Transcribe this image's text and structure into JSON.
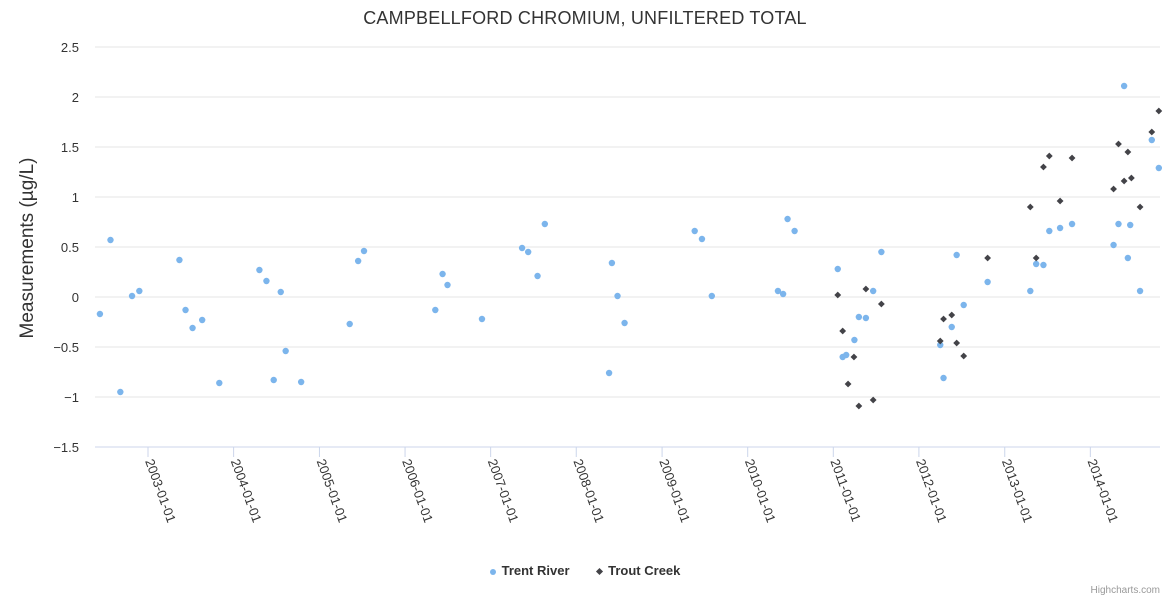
{
  "chart_data": {
    "type": "scatter",
    "title": "CAMPBELLFORD CHROMIUM, UNFILTERED TOTAL",
    "xlabel": "",
    "ylabel": "Measurements (µg/L)",
    "xlim": [
      "2002-05-20",
      "2014-10-25"
    ],
    "ylim": [
      -1.5,
      2.5
    ],
    "yticks": [
      "−1.5",
      "−1",
      "−0.5",
      "0",
      "0.5",
      "1",
      "1.5",
      "2",
      "2.5"
    ],
    "xticks": [
      "2003-01-01",
      "2004-01-01",
      "2005-01-01",
      "2006-01-01",
      "2007-01-01",
      "2008-01-01",
      "2009-01-01",
      "2010-01-01",
      "2011-01-01",
      "2012-01-01",
      "2013-01-01",
      "2014-01-01"
    ],
    "grid": true,
    "legend_position": "bottom-center",
    "series": [
      {
        "name": "Trent River",
        "color": "#7cb5ec",
        "marker": "circle",
        "points": [
          [
            "2002-06-10",
            -0.17
          ],
          [
            "2002-07-25",
            0.57
          ],
          [
            "2002-09-05",
            -0.95
          ],
          [
            "2002-10-25",
            0.01
          ],
          [
            "2002-11-25",
            0.06
          ],
          [
            "2003-05-15",
            0.37
          ],
          [
            "2003-06-10",
            -0.13
          ],
          [
            "2003-07-10",
            -0.31
          ],
          [
            "2003-08-20",
            -0.23
          ],
          [
            "2003-11-01",
            -0.86
          ],
          [
            "2004-04-20",
            0.27
          ],
          [
            "2004-05-20",
            0.16
          ],
          [
            "2004-06-20",
            -0.83
          ],
          [
            "2004-07-20",
            0.05
          ],
          [
            "2004-08-10",
            -0.54
          ],
          [
            "2004-10-15",
            -0.85
          ],
          [
            "2005-05-10",
            -0.27
          ],
          [
            "2005-06-15",
            0.36
          ],
          [
            "2005-07-10",
            0.46
          ],
          [
            "2006-05-10",
            -0.13
          ],
          [
            "2006-06-10",
            0.23
          ],
          [
            "2006-07-01",
            0.12
          ],
          [
            "2006-11-25",
            -0.22
          ],
          [
            "2007-05-15",
            0.49
          ],
          [
            "2007-06-10",
            0.45
          ],
          [
            "2007-07-20",
            0.21
          ],
          [
            "2007-08-20",
            0.73
          ],
          [
            "2008-05-20",
            -0.76
          ],
          [
            "2008-06-01",
            0.34
          ],
          [
            "2008-06-25",
            0.01
          ],
          [
            "2008-07-25",
            -0.26
          ],
          [
            "2009-05-20",
            0.66
          ],
          [
            "2009-06-20",
            0.58
          ],
          [
            "2009-08-01",
            0.01
          ],
          [
            "2010-05-10",
            0.06
          ],
          [
            "2010-06-01",
            0.03
          ],
          [
            "2010-06-20",
            0.78
          ],
          [
            "2010-07-20",
            0.66
          ],
          [
            "2011-01-20",
            0.28
          ],
          [
            "2011-02-10",
            -0.6
          ],
          [
            "2011-02-25",
            -0.58
          ],
          [
            "2011-04-01",
            -0.43
          ],
          [
            "2011-04-20",
            -0.2
          ],
          [
            "2011-05-20",
            -0.21
          ],
          [
            "2011-06-20",
            0.06
          ],
          [
            "2011-07-25",
            0.45
          ],
          [
            "2012-04-01",
            -0.48
          ],
          [
            "2012-04-15",
            -0.81
          ],
          [
            "2012-05-20",
            -0.3
          ],
          [
            "2012-06-10",
            0.42
          ],
          [
            "2012-07-10",
            -0.08
          ],
          [
            "2012-10-20",
            0.15
          ],
          [
            "2013-04-20",
            0.06
          ],
          [
            "2013-05-15",
            0.33
          ],
          [
            "2013-06-15",
            0.32
          ],
          [
            "2013-07-10",
            0.66
          ],
          [
            "2013-08-25",
            0.69
          ],
          [
            "2013-10-15",
            0.73
          ],
          [
            "2014-04-10",
            0.52
          ],
          [
            "2014-05-01",
            0.73
          ],
          [
            "2014-05-25",
            2.11
          ],
          [
            "2014-06-10",
            0.39
          ],
          [
            "2014-06-20",
            0.72
          ],
          [
            "2014-08-01",
            0.06
          ],
          [
            "2014-09-20",
            1.57
          ],
          [
            "2014-10-20",
            1.29
          ]
        ]
      },
      {
        "name": "Trout Creek",
        "color": "#434348",
        "marker": "diamond",
        "points": [
          [
            "2011-01-20",
            0.02
          ],
          [
            "2011-02-10",
            -0.34
          ],
          [
            "2011-03-05",
            -0.87
          ],
          [
            "2011-03-30",
            -0.6
          ],
          [
            "2011-04-20",
            -1.09
          ],
          [
            "2011-05-20",
            0.08
          ],
          [
            "2011-06-20",
            -1.03
          ],
          [
            "2011-07-25",
            -0.07
          ],
          [
            "2012-04-01",
            -0.44
          ],
          [
            "2012-04-15",
            -0.22
          ],
          [
            "2012-05-20",
            -0.18
          ],
          [
            "2012-06-10",
            -0.46
          ],
          [
            "2012-07-10",
            -0.59
          ],
          [
            "2012-10-20",
            0.39
          ],
          [
            "2013-04-20",
            0.9
          ],
          [
            "2013-05-15",
            0.39
          ],
          [
            "2013-06-15",
            1.3
          ],
          [
            "2013-07-10",
            1.41
          ],
          [
            "2013-08-25",
            0.96
          ],
          [
            "2013-10-15",
            1.39
          ],
          [
            "2014-04-10",
            1.08
          ],
          [
            "2014-05-01",
            1.53
          ],
          [
            "2014-05-25",
            1.16
          ],
          [
            "2014-06-10",
            1.45
          ],
          [
            "2014-06-25",
            1.19
          ],
          [
            "2014-08-01",
            0.9
          ],
          [
            "2014-09-20",
            1.65
          ],
          [
            "2014-10-20",
            1.86
          ]
        ]
      }
    ]
  },
  "credits": "Highcharts.com"
}
